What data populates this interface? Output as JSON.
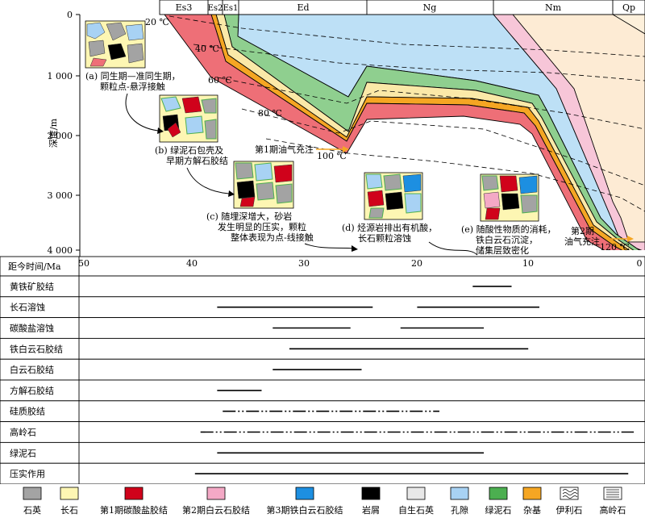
{
  "top_axis": {
    "formations": [
      "Es3",
      "Es2",
      "Es1",
      "Ed",
      "Ng",
      "Nm",
      "Qp"
    ],
    "depth_label": "深度/m",
    "depth_ticks": [
      "0",
      "1 000",
      "2 000",
      "3 000",
      "4 000"
    ]
  },
  "isotherms": [
    "20 ℃",
    "40 ℃",
    "60 ℃",
    "80 ℃",
    "100 ℃",
    "120 ℃"
  ],
  "charge_events": [
    "第1期油气充注",
    "第2期\n油气充注"
  ],
  "stages": [
    {
      "tag": "(a)",
      "text": "(a) 同生期—准同生期，\n颗粒点-悬浮接触"
    },
    {
      "tag": "(b)",
      "text": "(b) 绿泥石包壳及\n早期方解石胶结"
    },
    {
      "tag": "(c)",
      "text": "(c) 随埋深增大，砂岩\n发生明显的压实，颗粒\n整体表现为点-线接触"
    },
    {
      "tag": "(d)",
      "text": "(d) 烃源岩排出有机酸，\n长石颗粒溶蚀"
    },
    {
      "tag": "(e)",
      "text": "(e) 随酸性物质的消耗，\n铁白云石沉淀，\n储集层致密化"
    }
  ],
  "time_axis": {
    "label": "距今时间/Ma",
    "ticks": [
      "50",
      "40",
      "30",
      "20",
      "10",
      "0"
    ]
  },
  "processes": [
    {
      "name": "黄铁矿胶结",
      "segments": [
        [
          15,
          11.5
        ]
      ],
      "style": "solid"
    },
    {
      "name": "长石溶蚀",
      "segments": [
        [
          38,
          24
        ],
        [
          20,
          9
        ]
      ],
      "style": "solid"
    },
    {
      "name": "碳酸盐溶蚀",
      "segments": [
        [
          33,
          26
        ],
        [
          21.5,
          14
        ]
      ],
      "style": "solid"
    },
    {
      "name": "铁白云石胶结",
      "segments": [
        [
          31.5,
          10
        ]
      ],
      "style": "solid"
    },
    {
      "name": "白云石胶结",
      "segments": [
        [
          33,
          25
        ]
      ],
      "style": "solid"
    },
    {
      "name": "方解石胶结",
      "segments": [
        [
          38,
          34
        ]
      ],
      "style": "solid"
    },
    {
      "name": "硅质胶结",
      "segments": [
        [
          37.5,
          18
        ]
      ],
      "style": "dashdot"
    },
    {
      "name": "高岭石",
      "segments": [
        [
          39.5,
          0.5
        ]
      ],
      "style": "dashdot"
    },
    {
      "name": "绿泥石",
      "segments": [
        [
          38,
          14
        ]
      ],
      "style": "solid"
    },
    {
      "name": "压实作用",
      "segments": [
        [
          40,
          1
        ]
      ],
      "style": "solid"
    }
  ],
  "legend": [
    {
      "label": "石英",
      "color": "#a3a3a3",
      "pattern": "solid"
    },
    {
      "label": "长石",
      "color": "#fdf6b3",
      "pattern": "solid"
    },
    {
      "label": "第1期碳酸盐胶结",
      "color": "#d0021b",
      "pattern": "solid"
    },
    {
      "label": "第2期白云石胶结",
      "color": "#f4a9c6",
      "pattern": "solid"
    },
    {
      "label": "第3期铁白云石胶结",
      "color": "#1d8fe1",
      "pattern": "solid"
    },
    {
      "label": "岩屑",
      "color": "#000000",
      "pattern": "solid"
    },
    {
      "label": "自生石英",
      "color": "#e8e8e8",
      "pattern": "solid"
    },
    {
      "label": "孔隙",
      "color": "#a8d2f4",
      "pattern": "solid"
    },
    {
      "label": "绿泥石",
      "color": "#4caf50",
      "pattern": "solid"
    },
    {
      "label": "杂基",
      "color": "#f5a623",
      "pattern": "solid"
    },
    {
      "label": "伊利石",
      "color": "#ffffff",
      "pattern": "wavy"
    },
    {
      "label": "高岭石",
      "color": "#ffffff",
      "pattern": "lines"
    }
  ]
}
